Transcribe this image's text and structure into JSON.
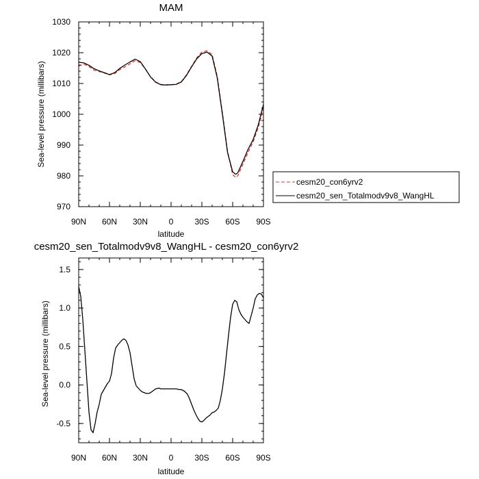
{
  "chart_data": [
    {
      "type": "line",
      "title": "MAM",
      "xlabel": "latitude",
      "ylabel": "Sea-level pressure (millibars)",
      "xlim": [
        90,
        -90
      ],
      "ylim": [
        970,
        1030
      ],
      "x_ticks": [
        90,
        60,
        30,
        0,
        -30,
        -60,
        -90
      ],
      "x_tick_labels": [
        "90N",
        "60N",
        "30N",
        "0",
        "30S",
        "60S",
        "90S"
      ],
      "y_ticks": [
        970,
        980,
        990,
        1000,
        1010,
        1020,
        1030
      ],
      "y_tick_labels": [
        "970",
        "980",
        "990",
        "1000",
        "1010",
        "1020",
        "1030"
      ],
      "legend_position": "right",
      "series": [
        {
          "name": "cesm20_con6yrv2",
          "color": "#e0322b",
          "dash": "dashed",
          "x": [
            90,
            85,
            80,
            75,
            70,
            65,
            60,
            55,
            50,
            45,
            40,
            35,
            30,
            25,
            20,
            15,
            10,
            5,
            0,
            -5,
            -10,
            -15,
            -20,
            -25,
            -30,
            -35,
            -40,
            -45,
            -50,
            -55,
            -60,
            -63,
            -65,
            -70,
            -75,
            -80,
            -85,
            -90
          ],
          "y": [
            1015.6,
            1016.3,
            1015.5,
            1014.3,
            1013.9,
            1013.4,
            1012.8,
            1013.2,
            1014.5,
            1015.4,
            1016.4,
            1017.4,
            1016.8,
            1014.7,
            1012.2,
            1010.5,
            1009.7,
            1009.6,
            1009.6,
            1009.8,
            1010.6,
            1012.8,
            1015.6,
            1018.3,
            1020.2,
            1020.6,
            1019.4,
            1012.3,
            1000.6,
            988.1,
            980.4,
            979.5,
            980.0,
            983.8,
            987.6,
            991.1,
            995.8,
            1002.0
          ]
        },
        {
          "name": "cesm20_sen_Totalmodv9v8_WangHL",
          "color": "#000000",
          "dash": "solid",
          "x": [
            90,
            85,
            80,
            75,
            70,
            65,
            60,
            55,
            50,
            45,
            40,
            35,
            30,
            25,
            20,
            15,
            10,
            5,
            0,
            -5,
            -10,
            -15,
            -20,
            -25,
            -30,
            -35,
            -40,
            -45,
            -50,
            -55,
            -60,
            -63,
            -65,
            -70,
            -75,
            -80,
            -85,
            -90
          ],
          "y": [
            1016.9,
            1016.7,
            1015.9,
            1014.8,
            1014.1,
            1013.5,
            1012.9,
            1013.5,
            1014.9,
            1016.0,
            1017.0,
            1017.9,
            1017.1,
            1014.7,
            1012.1,
            1010.4,
            1009.6,
            1009.5,
            1009.6,
            1009.7,
            1010.5,
            1012.6,
            1015.4,
            1018.0,
            1019.7,
            1020.2,
            1018.9,
            1011.8,
            1000.0,
            987.6,
            981.3,
            980.5,
            981.0,
            984.7,
            988.6,
            991.8,
            996.6,
            1003.2
          ]
        }
      ]
    },
    {
      "type": "line",
      "title": "cesm20_sen_Totalmodv9v8_WangHL - cesm20_con6yrv2",
      "xlabel": "latitude",
      "ylabel": "Sea-level pressure (millibars)",
      "xlim": [
        90,
        -90
      ],
      "ylim": [
        -0.75,
        1.65
      ],
      "x_ticks": [
        90,
        60,
        30,
        0,
        -30,
        -60,
        -90
      ],
      "x_tick_labels": [
        "90N",
        "60N",
        "30N",
        "0",
        "30S",
        "60S",
        "90S"
      ],
      "y_ticks": [
        -0.5,
        0.0,
        0.5,
        1.0,
        1.5
      ],
      "y_tick_labels": [
        "-0.5",
        "0.0",
        "0.5",
        "1.0",
        "1.5"
      ],
      "series": [
        {
          "color": "#000000",
          "dash": "solid",
          "x": [
            90,
            88,
            86,
            84,
            82,
            80,
            78,
            76,
            74,
            72,
            70,
            68,
            65,
            62,
            60,
            58,
            56,
            54,
            52,
            50,
            48,
            46,
            44,
            42,
            40,
            38,
            36,
            34,
            32,
            30,
            28,
            26,
            24,
            22,
            20,
            18,
            15,
            12,
            10,
            8,
            6,
            4,
            2,
            0,
            -2,
            -5,
            -8,
            -10,
            -13,
            -16,
            -18,
            -20,
            -22,
            -24,
            -26,
            -28,
            -30,
            -32,
            -34,
            -36,
            -38,
            -40,
            -42,
            -44,
            -46,
            -48,
            -50,
            -52,
            -54,
            -56,
            -58,
            -60,
            -62,
            -64,
            -66,
            -68,
            -70,
            -72,
            -74,
            -76,
            -78,
            -80,
            -82,
            -84,
            -86,
            -88,
            -90
          ],
          "y": [
            1.28,
            1.15,
            0.85,
            0.45,
            0.05,
            -0.35,
            -0.58,
            -0.62,
            -0.5,
            -0.35,
            -0.25,
            -0.12,
            -0.05,
            0.02,
            0.05,
            0.15,
            0.35,
            0.48,
            0.52,
            0.55,
            0.58,
            0.6,
            0.58,
            0.52,
            0.42,
            0.25,
            0.08,
            -0.01,
            -0.04,
            -0.07,
            -0.09,
            -0.1,
            -0.11,
            -0.11,
            -0.1,
            -0.08,
            -0.05,
            -0.04,
            -0.05,
            -0.05,
            -0.05,
            -0.05,
            -0.05,
            -0.05,
            -0.05,
            -0.05,
            -0.06,
            -0.06,
            -0.08,
            -0.12,
            -0.18,
            -0.25,
            -0.32,
            -0.38,
            -0.43,
            -0.47,
            -0.48,
            -0.46,
            -0.43,
            -0.41,
            -0.39,
            -0.36,
            -0.35,
            -0.33,
            -0.3,
            -0.2,
            -0.05,
            0.15,
            0.4,
            0.65,
            0.88,
            1.05,
            1.1,
            1.08,
            0.98,
            0.92,
            0.88,
            0.85,
            0.82,
            0.8,
            0.9,
            1.0,
            1.12,
            1.17,
            1.19,
            1.18,
            1.13
          ]
        }
      ]
    }
  ]
}
